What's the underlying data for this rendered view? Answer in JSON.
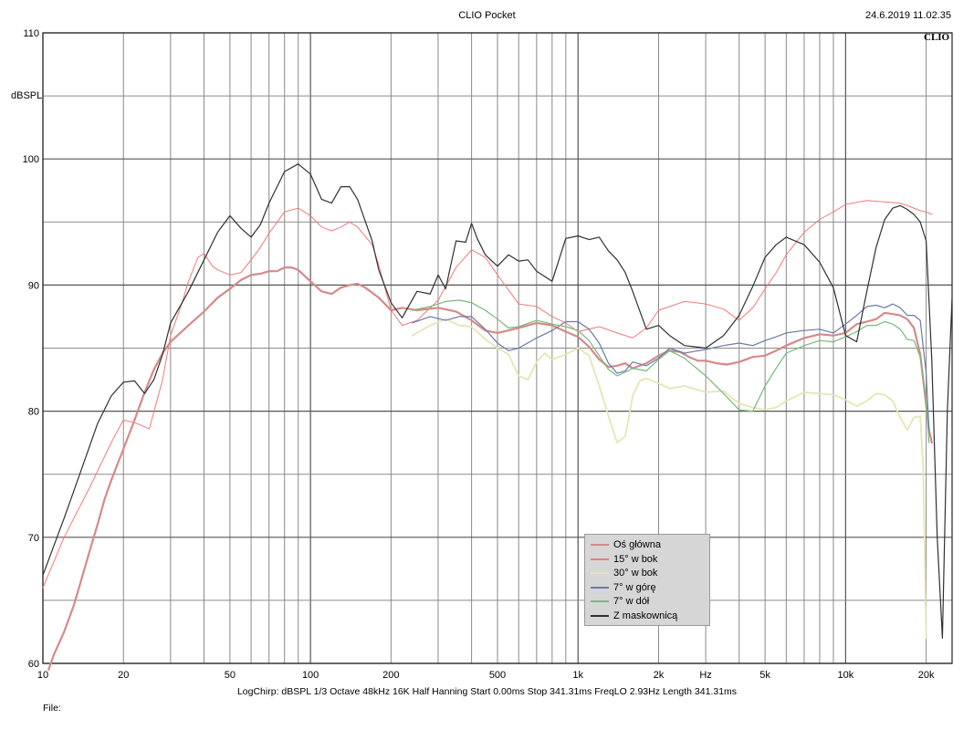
{
  "header": {
    "title": "CLIO Pocket",
    "timestamp": "24.6.2019 11.02.35",
    "logo": "CLIO"
  },
  "footer": {
    "params": "LogChirp:  dBSPL   1/3 Octave   48kHz   16K   Half Hanning   Start 0.00ms    Stop 341.31ms    FreqLO 2.93Hz    Length 341.31ms",
    "file_label": "File:"
  },
  "chart_data": {
    "type": "line",
    "title": "CLIO Pocket",
    "xlabel": "Hz",
    "ylabel": "dBSPL",
    "xscale": "log",
    "xlim": [
      10,
      25000
    ],
    "ylim": [
      60,
      110
    ],
    "grid": true,
    "legend_position": "bottom-right",
    "x_ticks": [
      {
        "value": 10,
        "label": "10"
      },
      {
        "value": 20,
        "label": "20"
      },
      {
        "value": 50,
        "label": "50"
      },
      {
        "value": 100,
        "label": "100"
      },
      {
        "value": 200,
        "label": "200"
      },
      {
        "value": 500,
        "label": "500"
      },
      {
        "value": 1000,
        "label": "1k"
      },
      {
        "value": 2000,
        "label": "2k"
      },
      {
        "value": 5000,
        "label": "5k"
      },
      {
        "value": 10000,
        "label": "10k"
      },
      {
        "value": 20000,
        "label": "20k"
      }
    ],
    "y_ticks": [
      {
        "value": 60,
        "label": "60"
      },
      {
        "value": 70,
        "label": "70"
      },
      {
        "value": 80,
        "label": "80"
      },
      {
        "value": 90,
        "label": "90"
      },
      {
        "value": 100,
        "label": "100"
      },
      {
        "value": 110,
        "label": "110"
      }
    ],
    "series": [
      {
        "name": "Oś  główna",
        "color": "#d48a8a",
        "width": 2.2,
        "x": [
          10.5,
          11,
          12,
          13,
          14,
          15,
          16,
          17,
          18,
          19,
          20,
          22,
          24,
          26,
          28,
          30,
          35,
          40,
          45,
          50,
          55,
          60,
          65,
          70,
          75,
          80,
          85,
          90,
          100,
          110,
          120,
          130,
          140,
          150,
          160,
          170,
          180,
          200,
          220,
          250,
          300,
          350,
          400,
          450,
          500,
          600,
          700,
          800,
          900,
          1000,
          1100,
          1200,
          1300,
          1400,
          1500,
          1600,
          1800,
          2000,
          2200,
          2400,
          2600,
          2800,
          3000,
          3300,
          3600,
          4000,
          4500,
          5000,
          5500,
          6000,
          7000,
          8000,
          9000,
          10000,
          11000,
          12000,
          13000,
          14000,
          15000,
          16000,
          17000,
          18000,
          19000,
          20000,
          20500,
          21000
        ],
        "y": [
          59.5,
          60.7,
          62.5,
          64.5,
          66.8,
          69,
          71,
          73,
          74.5,
          75.8,
          77,
          79.3,
          81.5,
          83.3,
          84.6,
          85.5,
          86.8,
          87.9,
          89,
          89.7,
          90.4,
          90.8,
          90.9,
          91.1,
          91.1,
          91.4,
          91.4,
          91.2,
          90.3,
          89.5,
          89.3,
          89.8,
          90.0,
          90.1,
          89.8,
          89.4,
          89,
          88,
          88.2,
          88.0,
          88.2,
          87.9,
          87.2,
          86.4,
          86.2,
          86.6,
          87.0,
          86.8,
          86.3,
          85.9,
          85.1,
          84.1,
          83.5,
          83.6,
          83.8,
          83.4,
          83.8,
          84.4,
          84.8,
          84.7,
          84.3,
          84.0,
          84.0,
          83.8,
          83.7,
          83.9,
          84.3,
          84.4,
          84.8,
          85.2,
          85.8,
          86.1,
          86.0,
          86.2,
          86.9,
          87.1,
          87.3,
          87.8,
          87.7,
          87.6,
          87.3,
          86.6,
          84.5,
          80.5,
          78.5,
          77.5
        ]
      },
      {
        "name": "15°  w  bok",
        "color": "#f07a7a",
        "width": 1.0,
        "x": [
          10,
          12,
          15,
          18,
          20,
          22,
          25,
          28,
          30,
          33,
          35,
          38,
          40,
          43,
          45,
          50,
          55,
          60,
          65,
          70,
          80,
          90,
          100,
          110,
          120,
          130,
          140,
          150,
          170,
          180,
          200,
          220,
          250,
          300,
          350,
          400,
          450,
          500,
          600,
          700,
          800,
          900,
          1000,
          1200,
          1400,
          1600,
          1800,
          2000,
          2500,
          3000,
          3500,
          4000,
          4500,
          5000,
          5500,
          6000,
          7000,
          8000,
          9000,
          10000,
          12000,
          14000,
          16000,
          17000,
          18000,
          19000,
          20000,
          21000
        ],
        "y": [
          66,
          70,
          74,
          77.5,
          79.3,
          79.1,
          78.6,
          82.5,
          86,
          88.5,
          90.3,
          92.2,
          92.5,
          91.5,
          91.2,
          90.8,
          91,
          92,
          93,
          94.1,
          95.8,
          96.1,
          95.5,
          94.6,
          94.3,
          94.6,
          95,
          94.6,
          93.2,
          91.6,
          88,
          86.8,
          87.2,
          88.8,
          91.4,
          92.8,
          92.2,
          90.8,
          88.5,
          88.3,
          87.5,
          87,
          86.3,
          86.7,
          86.2,
          85.8,
          86.6,
          88.0,
          88.7,
          88.5,
          88.1,
          87.2,
          88.2,
          89.7,
          91.0,
          92.4,
          94.2,
          95.2,
          95.8,
          96.4,
          96.7,
          96.6,
          96.5,
          96.3,
          96.1,
          95.9,
          95.8,
          95.6
        ]
      },
      {
        "name": "30°  w  bok",
        "color": "#e4e6b4",
        "width": 1.8,
        "x": [
          240,
          280,
          320,
          360,
          400,
          450,
          500,
          550,
          600,
          650,
          700,
          750,
          800,
          900,
          1000,
          1100,
          1200,
          1300,
          1400,
          1500,
          1600,
          1700,
          1800,
          2000,
          2200,
          2500,
          3000,
          3500,
          4000,
          4500,
          5000,
          5500,
          6000,
          7000,
          8000,
          9000,
          10000,
          11000,
          12000,
          13000,
          14000,
          15000,
          16000,
          17000,
          18000,
          19000,
          19500,
          20000
        ],
        "y": [
          86,
          86.8,
          87.3,
          86.8,
          86.7,
          85.7,
          85,
          84.5,
          82.8,
          82.5,
          83.9,
          84.6,
          84.1,
          84.5,
          85,
          84.4,
          82,
          79.6,
          77.5,
          78,
          81.2,
          82.4,
          82.6,
          82.2,
          81.8,
          82,
          81.5,
          81.6,
          80.6,
          80.3,
          80.1,
          80.3,
          80.8,
          81.5,
          81.4,
          81.3,
          80.9,
          80.4,
          80.8,
          81.4,
          81.3,
          80.8,
          79.5,
          78.5,
          79.5,
          79.6,
          75.5,
          62
        ]
      },
      {
        "name": "7°  w  górę",
        "color": "#6a7aa8",
        "width": 1.2,
        "x": [
          240,
          280,
          320,
          360,
          400,
          450,
          500,
          550,
          600,
          700,
          800,
          900,
          1000,
          1100,
          1200,
          1300,
          1400,
          1500,
          1600,
          1800,
          2000,
          2200,
          2500,
          3000,
          3500,
          4000,
          4500,
          5000,
          5500,
          6000,
          7000,
          8000,
          9000,
          10000,
          11000,
          12000,
          13000,
          14000,
          15000,
          16000,
          17000,
          18000,
          19000,
          20000,
          20500
        ],
        "y": [
          87,
          87.5,
          87.2,
          87.5,
          87.5,
          86.5,
          85.4,
          84.8,
          85,
          85.8,
          86.4,
          87.1,
          87.1,
          86.5,
          85.4,
          83.8,
          83.0,
          83.2,
          83.9,
          83.6,
          84.2,
          85.0,
          84.6,
          84.9,
          85.2,
          85.4,
          85.2,
          85.6,
          85.9,
          86.2,
          86.4,
          86.5,
          86.2,
          86.9,
          87.6,
          88.3,
          88.4,
          88.2,
          88.5,
          88.2,
          87.6,
          87.6,
          87.2,
          83,
          78.5
        ]
      },
      {
        "name": "7°  w  dół",
        "color": "#78b878",
        "width": 1.2,
        "x": [
          240,
          280,
          320,
          360,
          400,
          450,
          500,
          550,
          600,
          700,
          800,
          900,
          1000,
          1100,
          1200,
          1300,
          1400,
          1500,
          1600,
          1800,
          2000,
          2200,
          2500,
          3000,
          3500,
          4000,
          4500,
          5000,
          5500,
          6000,
          7000,
          8000,
          9000,
          10000,
          11000,
          12000,
          13000,
          14000,
          15000,
          16000,
          17000,
          18000,
          19000,
          20000,
          20500
        ],
        "y": [
          88,
          88.3,
          88.7,
          88.8,
          88.6,
          88,
          87.3,
          86.6,
          86.7,
          87.2,
          86.9,
          86.7,
          86.4,
          85.6,
          84.4,
          83.3,
          82.8,
          83.1,
          83.4,
          83.2,
          84.1,
          84.8,
          84.2,
          82.8,
          81.4,
          80.1,
          80.0,
          82.0,
          83.4,
          84.6,
          85.2,
          85.6,
          85.5,
          85.9,
          86.3,
          86.8,
          86.8,
          87.1,
          86.9,
          86.5,
          85.7,
          85.6,
          84.3,
          80.8,
          77.5
        ]
      },
      {
        "name": "Z  maskownicą",
        "color": "#303030",
        "width": 1.2,
        "x": [
          10,
          12,
          14,
          16,
          18,
          20,
          22,
          24,
          26,
          28,
          30,
          35,
          40,
          45,
          50,
          55,
          60,
          65,
          70,
          80,
          90,
          100,
          110,
          120,
          130,
          140,
          150,
          170,
          180,
          200,
          220,
          250,
          280,
          300,
          320,
          350,
          380,
          400,
          420,
          450,
          500,
          550,
          600,
          650,
          700,
          800,
          900,
          1000,
          1100,
          1200,
          1300,
          1400,
          1500,
          1600,
          1800,
          2000,
          2200,
          2500,
          3000,
          3500,
          4000,
          4500,
          5000,
          5500,
          6000,
          7000,
          8000,
          9000,
          10000,
          11000,
          12000,
          13000,
          14000,
          15000,
          16000,
          17000,
          18000,
          19000,
          20000,
          21000,
          22000,
          23000,
          24000,
          25000
        ],
        "y": [
          67,
          71.5,
          75.5,
          79,
          81.2,
          82.3,
          82.4,
          81.4,
          82.5,
          84.5,
          87,
          89.5,
          92,
          94.2,
          95.5,
          94.5,
          93.8,
          94.8,
          96.5,
          99.0,
          99.6,
          98.8,
          96.8,
          96.5,
          97.8,
          97.8,
          96.8,
          93.5,
          91.2,
          88.6,
          87.4,
          89.5,
          89.3,
          90.8,
          89.7,
          93.5,
          93.4,
          94.9,
          93.7,
          92.4,
          91.5,
          92.4,
          91.9,
          92.0,
          91.1,
          90.3,
          93.7,
          93.9,
          93.6,
          93.8,
          92.7,
          92.0,
          91.0,
          89.5,
          86.5,
          86.8,
          86.0,
          85.2,
          85.0,
          86.0,
          87.6,
          89.9,
          92.2,
          93.2,
          93.8,
          93.2,
          91.8,
          89.8,
          86.0,
          85.5,
          89.5,
          93.0,
          95.2,
          96.1,
          96.3,
          96.0,
          95.6,
          95.0,
          93.5,
          84,
          70,
          62,
          80,
          89
        ]
      }
    ]
  }
}
